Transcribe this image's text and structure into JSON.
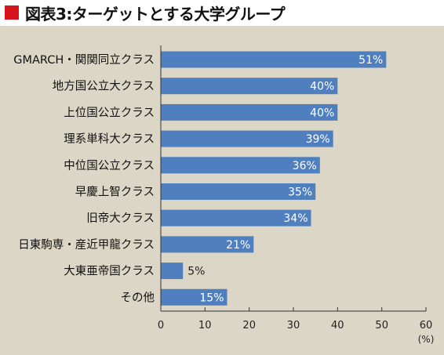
{
  "title": "図表3:ターゲットとする大学グループ",
  "colors": {
    "title_square": "#d7141d",
    "background": "#dbd6c5",
    "bar": "#4f7fbf",
    "axis": "#333333",
    "value_inside": "#ffffff",
    "value_outside": "#222222"
  },
  "chart_data": {
    "type": "bar",
    "orientation": "horizontal",
    "categories": [
      "GMARCH・関関同立クラス",
      "地方国公立大クラス",
      "上位国公立クラス",
      "理系単科大クラス",
      "中位国公立クラス",
      "早慶上智クラス",
      "旧帝大クラス",
      "日東駒専・産近甲龍クラス",
      "大東亜帝国クラス",
      "その他"
    ],
    "values": [
      51,
      40,
      40,
      39,
      36,
      35,
      34,
      21,
      5,
      15
    ],
    "value_labels": [
      "51%",
      "40%",
      "40%",
      "39%",
      "36%",
      "35%",
      "34%",
      "21%",
      "5%",
      "15%"
    ],
    "xlim": [
      0,
      60
    ],
    "xticks": [
      0,
      10,
      20,
      30,
      40,
      50,
      60
    ],
    "xtick_labels": [
      "0",
      "10",
      "20",
      "30",
      "40",
      "50",
      "60"
    ],
    "x_unit": "(%)",
    "grid": false
  }
}
